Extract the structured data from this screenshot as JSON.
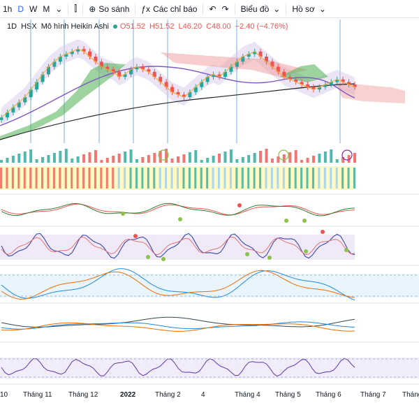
{
  "toolbar": {
    "intervals": [
      "1h",
      "D",
      "W",
      "M"
    ],
    "active_interval": "D",
    "compare_label": "So sánh",
    "indicators_label": "Các chỉ báo",
    "chart_label": "Biểu đồ",
    "profile_label": "Hồ sơ"
  },
  "legend": {
    "interval": "1D",
    "exchange": "HSX",
    "chart_type": "Mô hình Heikin Ashi",
    "open": "O51.52",
    "high": "H51.52",
    "low": "L46.20",
    "close": "C48.00",
    "change": "−2.40 (−4.76%)"
  },
  "colors": {
    "up": "#26a69a",
    "down": "#ef5350",
    "accent": "#2962ff",
    "panel_purple": "#e8e0f5",
    "panel_blue": "#e3f2fd"
  },
  "xaxis": {
    "labels": [
      "10",
      "Tháng 11",
      "Tháng 12",
      "2022",
      "Tháng 2",
      "4",
      "Tháng 4",
      "Tháng 5",
      "Tháng 6",
      "Tháng 7",
      "Tháng"
    ]
  },
  "chart_data": {
    "type": "line",
    "title": "",
    "price": [
      36,
      38,
      40,
      42,
      44,
      47,
      50,
      53,
      56,
      58,
      60,
      61,
      62,
      63,
      62,
      60,
      58,
      56,
      55,
      54,
      52,
      53,
      55,
      56,
      55,
      54,
      52,
      50,
      48,
      46,
      45,
      44,
      46,
      48,
      50,
      52,
      53,
      52,
      54,
      56,
      58,
      60,
      61,
      62,
      60,
      58,
      56,
      54,
      52,
      51,
      50,
      49,
      48,
      47,
      48,
      49,
      50,
      51,
      50,
      49,
      48
    ]
  }
}
